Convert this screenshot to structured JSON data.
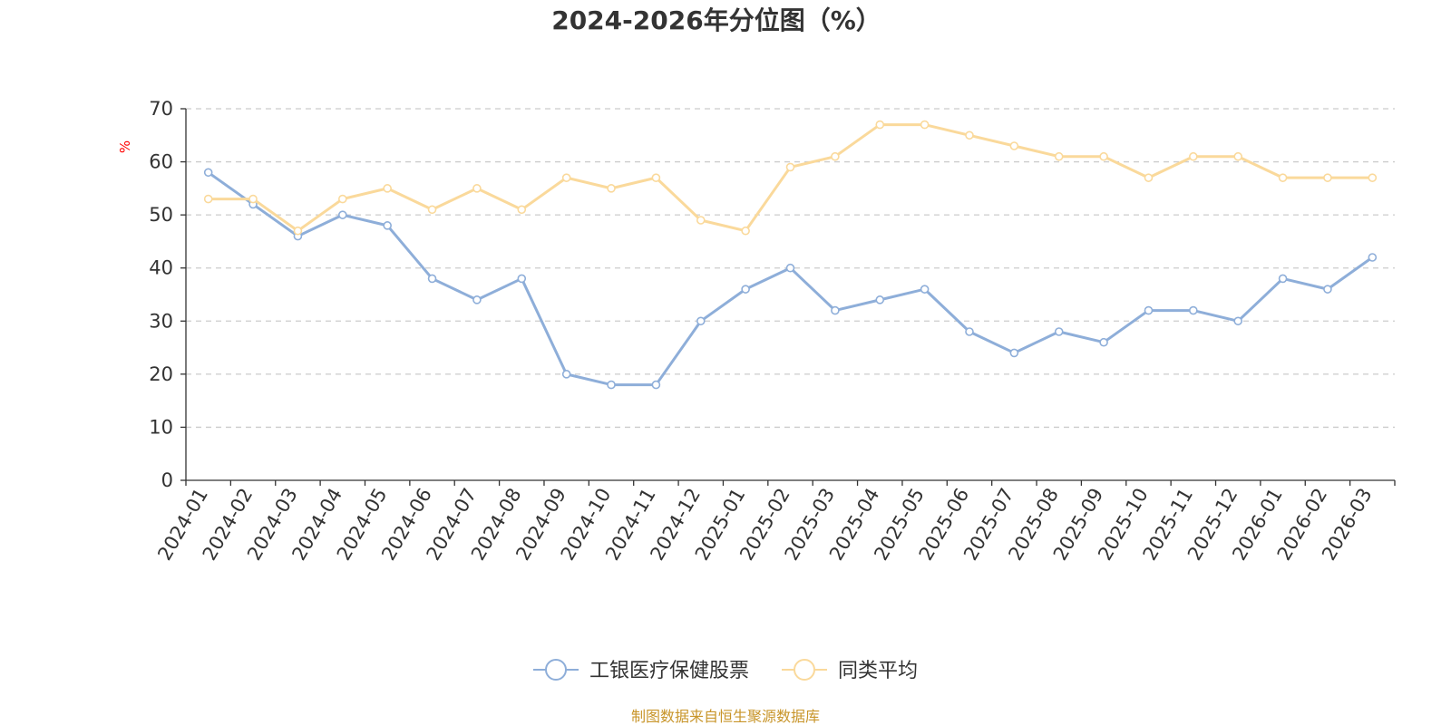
{
  "chart_data": {
    "type": "line",
    "title": "2024-2026年分位图（%）",
    "ylabel": "%",
    "ylim": [
      0,
      70
    ],
    "yticks": [
      0,
      10,
      20,
      30,
      40,
      50,
      60,
      70
    ],
    "grid": true,
    "legend_position": "bottom-center",
    "categories": [
      "2024-01",
      "2024-02",
      "2024-03",
      "2024-04",
      "2024-05",
      "2024-06",
      "2024-07",
      "2024-08",
      "2024-09",
      "2024-10",
      "2024-11",
      "2024-12",
      "2025-01",
      "2025-02",
      "2025-03",
      "2025-04",
      "2025-05",
      "2025-06",
      "2025-07",
      "2025-08",
      "2025-09",
      "2025-10",
      "2025-11",
      "2025-12",
      "2026-01",
      "2026-02",
      "2026-03"
    ],
    "series": [
      {
        "name": "工银医疗保健股票",
        "color": "#8eaed9",
        "values": [
          58,
          52,
          46,
          50,
          48,
          38,
          34,
          38,
          20,
          18,
          18,
          30,
          36,
          40,
          32,
          34,
          36,
          28,
          24,
          28,
          26,
          32,
          32,
          30,
          38,
          36,
          42
        ]
      },
      {
        "name": "同类平均",
        "color": "#fad99b",
        "values": [
          53,
          53,
          47,
          53,
          55,
          51,
          55,
          51,
          57,
          55,
          57,
          49,
          47,
          59,
          61,
          67,
          67,
          65,
          63,
          61,
          61,
          57,
          61,
          61,
          57,
          57,
          57
        ]
      }
    ]
  },
  "source_text": "制图数据来自恒生聚源数据库",
  "colors": {
    "axis": "#333333",
    "grid": "#cccccc",
    "unit": "#ff0000",
    "source": "#c8952a"
  }
}
